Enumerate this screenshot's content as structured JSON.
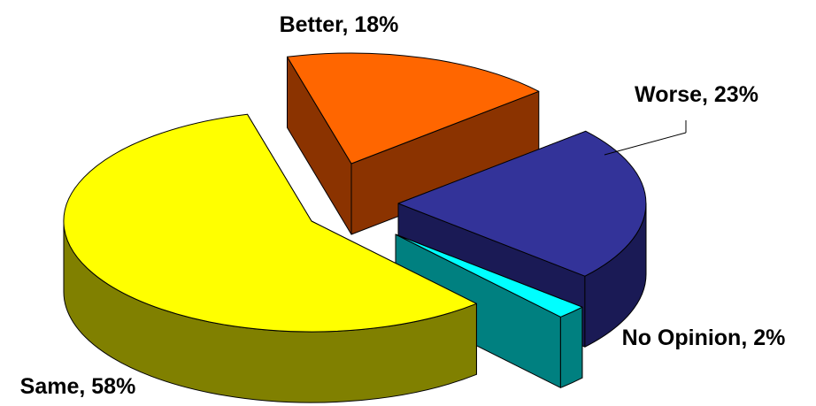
{
  "chart_data": {
    "type": "pie",
    "three_d": true,
    "exploded": true,
    "slices": [
      {
        "name": "Better",
        "value": 18,
        "label": "Better, 18%",
        "color": "#ff6600",
        "side_color": "#8b3300"
      },
      {
        "name": "Worse",
        "value": 23,
        "label": "Worse, 23%",
        "color": "#333399",
        "side_color": "#1a1a55"
      },
      {
        "name": "No Opinion",
        "value": 2,
        "label": "No Opinion, 2%",
        "color": "#00ffff",
        "side_color": "#008080"
      },
      {
        "name": "Same",
        "value": 58,
        "label": "Same, 58%",
        "color": "#ffff00",
        "side_color": "#808000"
      }
    ]
  }
}
